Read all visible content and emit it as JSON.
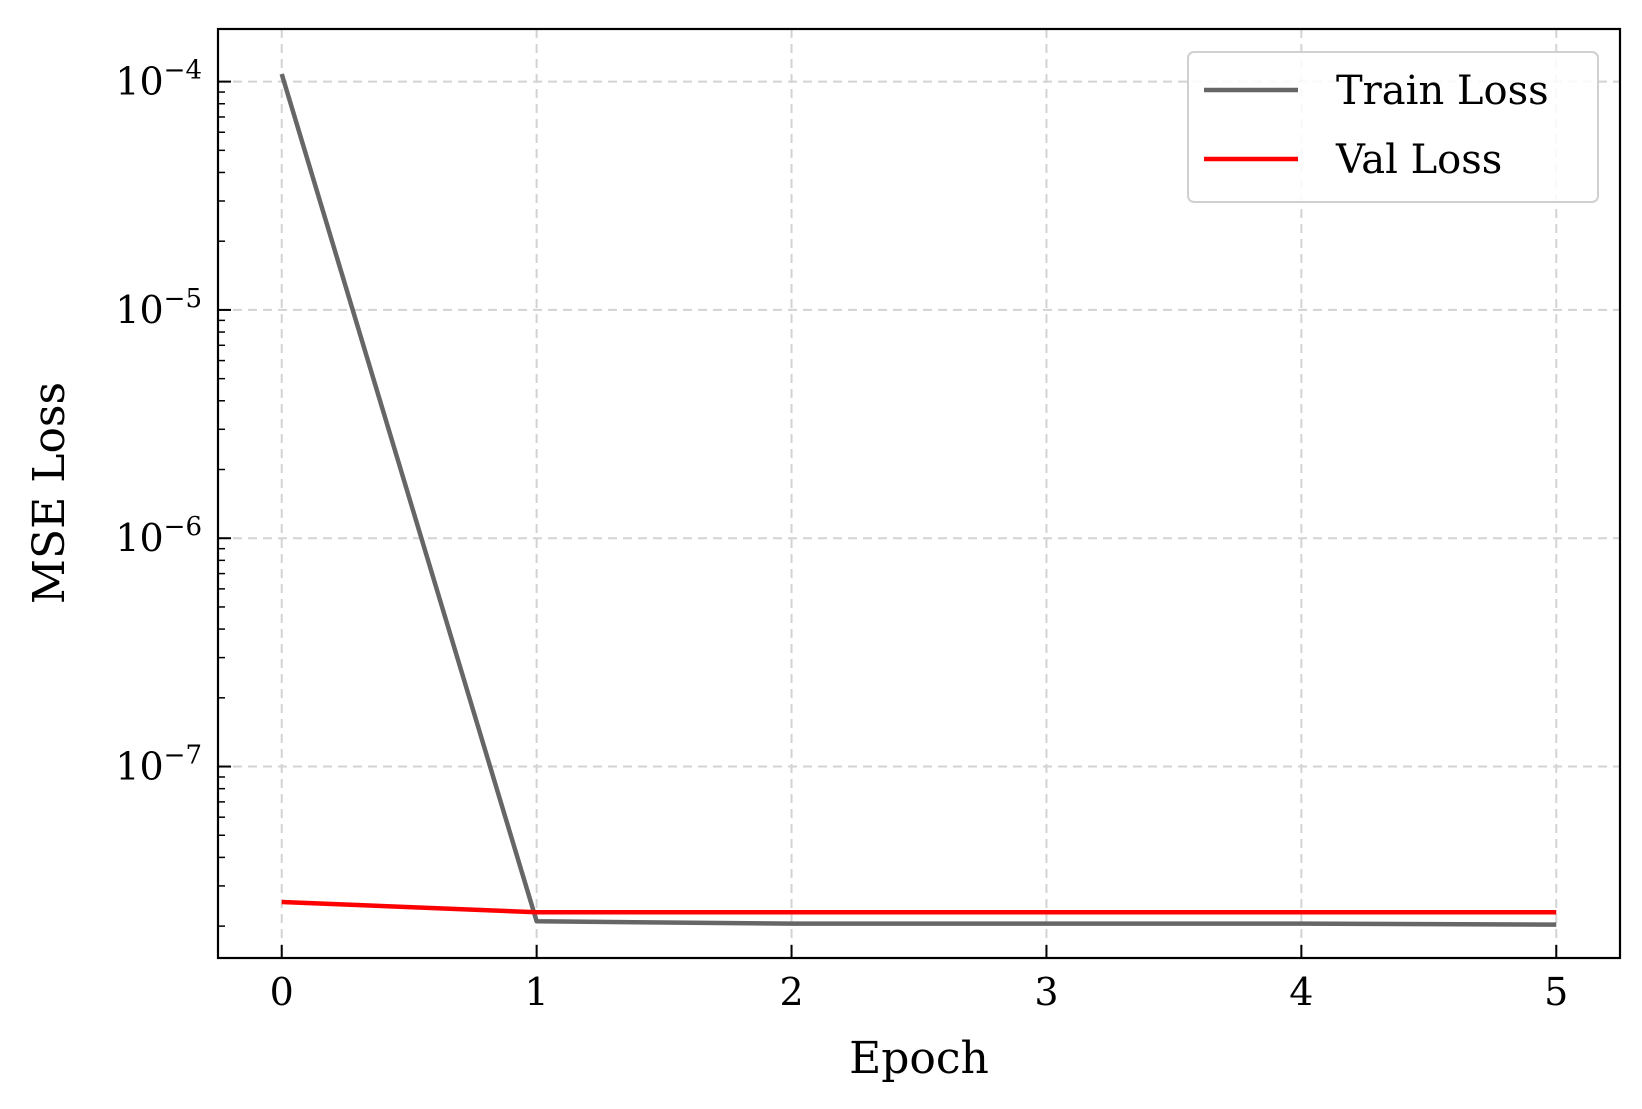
{
  "chart_data": {
    "type": "line",
    "xlabel": "Epoch",
    "ylabel": "MSE Loss",
    "yscale": "log",
    "xlim": [
      -0.25,
      5.25
    ],
    "ylim": [
      1.45e-08,
      0.00017
    ],
    "x": [
      0,
      1,
      2,
      3,
      4,
      5
    ],
    "x_ticks": [
      {
        "value": 0,
        "label": "0"
      },
      {
        "value": 1,
        "label": "1"
      },
      {
        "value": 2,
        "label": "2"
      },
      {
        "value": 3,
        "label": "3"
      },
      {
        "value": 4,
        "label": "4"
      },
      {
        "value": 5,
        "label": "5"
      }
    ],
    "y_ticks": [
      {
        "value": 0.0001,
        "base": "10",
        "exp": "−4"
      },
      {
        "value": 1e-05,
        "base": "10",
        "exp": "−5"
      },
      {
        "value": 1e-06,
        "base": "10",
        "exp": "−6"
      },
      {
        "value": 1e-07,
        "base": "10",
        "exp": "−7"
      }
    ],
    "series": [
      {
        "name": "Train Loss",
        "color": "#666666",
        "values": [
          0.000108,
          2.1e-08,
          2.05e-08,
          2.05e-08,
          2.05e-08,
          2.03e-08
        ]
      },
      {
        "name": "Val Loss",
        "color": "#ff0000",
        "values": [
          2.55e-08,
          2.3e-08,
          2.3e-08,
          2.3e-08,
          2.3e-08,
          2.3e-08
        ]
      }
    ],
    "grid": true,
    "legend_position": "top-right"
  }
}
